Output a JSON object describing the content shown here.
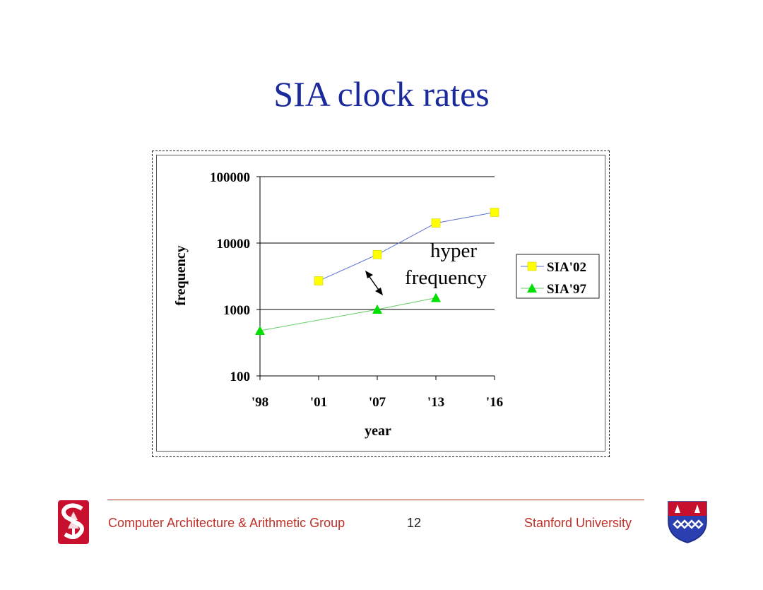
{
  "slide": {
    "title": "SIA clock rates"
  },
  "chart_data": {
    "type": "line",
    "title": "",
    "xlabel": "year",
    "ylabel": "frequency",
    "yscale": "log",
    "ylim": [
      100,
      100000
    ],
    "yticks": [
      100,
      1000,
      10000,
      100000
    ],
    "ytick_labels": [
      "100",
      "1000",
      "10000",
      "100000"
    ],
    "categories": [
      "'98",
      "'01",
      "'07",
      "'13",
      "'16"
    ],
    "grid": true,
    "legend": "right",
    "series": [
      {
        "name": "SIA'02",
        "marker": "square",
        "color": "#ffff00",
        "line_color": "#5b6fd0",
        "values": [
          null,
          2700,
          6700,
          20000,
          29000
        ]
      },
      {
        "name": "SIA'97",
        "marker": "triangle",
        "color": "#00e000",
        "line_color": "#66cc66",
        "values": [
          480,
          null,
          1000,
          1500,
          null
        ]
      }
    ],
    "annotation": {
      "line1": "hyper",
      "line2": "frequency"
    }
  },
  "footer": {
    "group": "Computer Architecture & Arithmetic Group",
    "page": "12",
    "university": "Stanford University"
  },
  "colors": {
    "title": "#1a2a9c",
    "footer_text": "#c0302a",
    "stanford_red": "#c8102e",
    "shield_blue": "#2a3fb0"
  }
}
